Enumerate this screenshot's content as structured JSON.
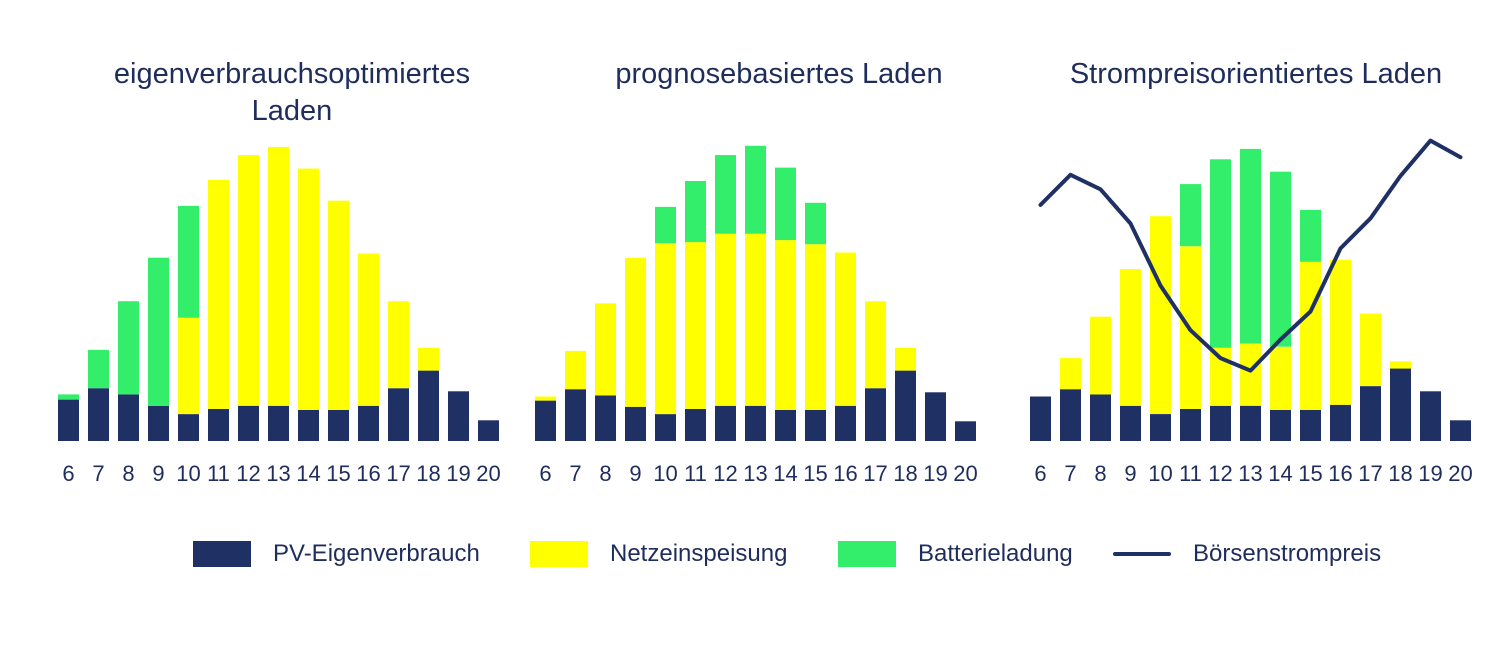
{
  "colors": {
    "pv_eigenverbrauch": "#1f3164",
    "netzeinspeisung": "#ffff00",
    "batterieladung": "#33ee6a",
    "boersenstrompreis": "#1f3164",
    "text": "#1f2d5c"
  },
  "legend": [
    {
      "key": "pv",
      "label": "PV-Eigenverbrauch",
      "kind": "box",
      "color": "#1f3164"
    },
    {
      "key": "netz",
      "label": "Netzeinspeisung",
      "kind": "box",
      "color": "#ffff00"
    },
    {
      "key": "batt",
      "label": "Batterieladung",
      "kind": "box",
      "color": "#33ee6a"
    },
    {
      "key": "preis",
      "label": "Börsenstrompreis",
      "kind": "line",
      "color": "#1f3164"
    }
  ],
  "chart_data": [
    {
      "type": "bar",
      "stacked": true,
      "title_lines": [
        "eigenverbrauchsoptimiertes",
        "Laden"
      ],
      "categories": [
        "6",
        "7",
        "8",
        "9",
        "10",
        "11",
        "12",
        "13",
        "14",
        "15",
        "16",
        "17",
        "18",
        "19",
        "20"
      ],
      "ylim": [
        0,
        28
      ],
      "series": [
        {
          "name": "PV-Eigenverbrauch",
          "values": [
            4.0,
            5.1,
            4.5,
            3.4,
            2.6,
            3.1,
            3.4,
            3.4,
            3.0,
            3.0,
            3.4,
            5.1,
            6.8,
            4.8,
            2.0
          ]
        },
        {
          "name": "Netzeinspeisung",
          "values": [
            0,
            0,
            0,
            0,
            9.3,
            22.1,
            24.2,
            25.0,
            23.3,
            20.2,
            14.7,
            8.4,
            2.2,
            0,
            0
          ]
        },
        {
          "name": "Batterieladung",
          "values": [
            0.5,
            3.7,
            9.0,
            14.3,
            10.8,
            0,
            0,
            0,
            0,
            0,
            0,
            0,
            0,
            0,
            0
          ]
        }
      ]
    },
    {
      "type": "bar",
      "stacked": true,
      "title_lines": [
        "prognosebasiertes Laden"
      ],
      "categories": [
        "6",
        "7",
        "8",
        "9",
        "10",
        "11",
        "12",
        "13",
        "14",
        "15",
        "16",
        "17",
        "18",
        "19",
        "20"
      ],
      "ylim": [
        0,
        28
      ],
      "series": [
        {
          "name": "PV-Eigenverbrauch",
          "values": [
            3.9,
            5.0,
            4.4,
            3.3,
            2.6,
            3.1,
            3.4,
            3.4,
            3.0,
            3.0,
            3.4,
            5.1,
            6.8,
            4.7,
            1.9
          ]
        },
        {
          "name": "Netzeinspeisung",
          "values": [
            0.4,
            3.7,
            8.9,
            14.4,
            16.5,
            16.1,
            16.6,
            16.6,
            16.4,
            16.0,
            14.8,
            8.4,
            2.2,
            0,
            0
          ]
        },
        {
          "name": "Batterieladung",
          "values": [
            0,
            0,
            0,
            0,
            3.5,
            5.9,
            7.6,
            8.5,
            7.0,
            4.0,
            0,
            0,
            0,
            0,
            0
          ]
        }
      ]
    },
    {
      "type": "bar",
      "stacked": true,
      "title_lines": [
        "Strompreisorientiertes Laden"
      ],
      "categories": [
        "6",
        "7",
        "8",
        "9",
        "10",
        "11",
        "12",
        "13",
        "14",
        "15",
        "16",
        "17",
        "18",
        "19",
        "20"
      ],
      "ylim": [
        0,
        28
      ],
      "series": [
        {
          "name": "PV-Eigenverbrauch",
          "values": [
            4.3,
            5.0,
            4.5,
            3.4,
            2.6,
            3.1,
            3.4,
            3.4,
            3.0,
            3.0,
            3.5,
            5.3,
            7.0,
            4.8,
            2.0
          ]
        },
        {
          "name": "Netzeinspeisung",
          "values": [
            0,
            3.0,
            7.5,
            13.2,
            19.1,
            15.7,
            5.6,
            6.0,
            6.1,
            14.3,
            14.0,
            7.0,
            0.7,
            0,
            0
          ]
        },
        {
          "name": "Batterieladung",
          "values": [
            0,
            0,
            0,
            0,
            0,
            6.0,
            18.2,
            18.8,
            16.9,
            5.0,
            0,
            0,
            0,
            0,
            0
          ]
        }
      ],
      "line": {
        "name": "Börsenstrompreis",
        "values": [
          22.8,
          25.7,
          24.3,
          21.0,
          15.0,
          10.7,
          8.0,
          6.8,
          9.8,
          12.5,
          18.6,
          21.5,
          25.6,
          29.0,
          27.4
        ]
      }
    }
  ]
}
